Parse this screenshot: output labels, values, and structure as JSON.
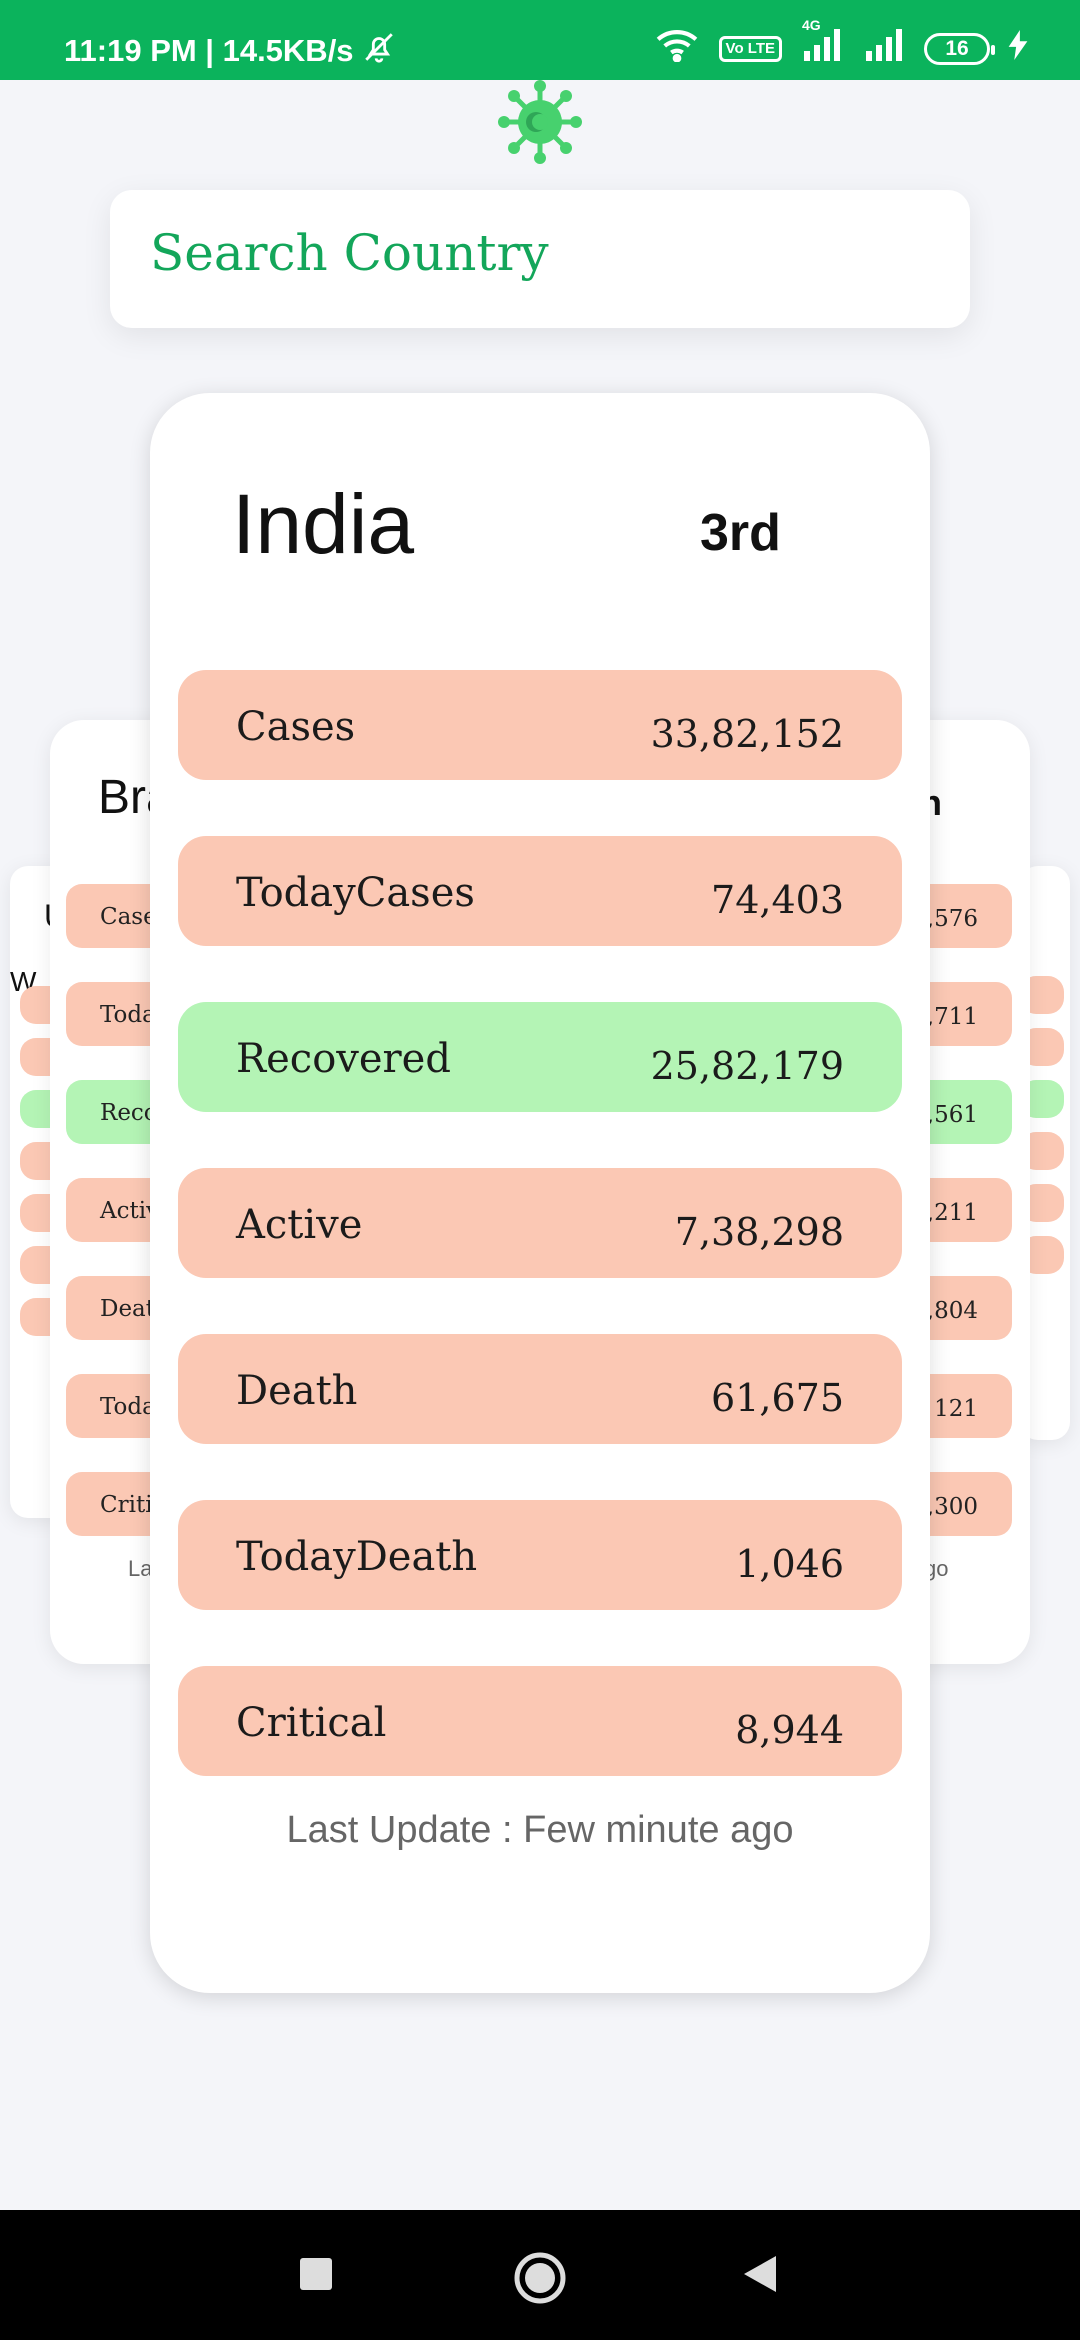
{
  "status_bar": {
    "time_speed": "11:19 PM | 14.5KB/s",
    "network": "4G",
    "volte": "Vo LTE",
    "battery": "16"
  },
  "search": {
    "placeholder": "Search Country"
  },
  "main_card": {
    "country": "India",
    "rank": "3rd",
    "stats": [
      {
        "label": "Cases",
        "value": "33,82,152"
      },
      {
        "label": "TodayCases",
        "value": "74,403"
      },
      {
        "label": "Recovered",
        "value": "25,82,179"
      },
      {
        "label": "Active",
        "value": "7,38,298"
      },
      {
        "label": "Death",
        "value": "61,675"
      },
      {
        "label": "TodayDeath",
        "value": "1,046"
      },
      {
        "label": "Critical",
        "value": "8,944"
      }
    ],
    "last_update": "Last Update : Few minute ago"
  },
  "left_card": {
    "country": "Bra",
    "labels": [
      "Case",
      "Toda",
      "Reco",
      "Activ",
      "Deat",
      "Toda",
      "Criti"
    ],
    "footer": "La"
  },
  "right_card": {
    "country": "n",
    "values": [
      ",576",
      ",711",
      ",561",
      ",211",
      ",804",
      "121",
      ",300"
    ],
    "footer": "go"
  },
  "far_left_card": {
    "country": "U",
    "subtitle": "W"
  },
  "colors": {
    "status_bar": "#0bb35c",
    "pink_row": "#fbc8b4",
    "green_row": "#b4f4b5",
    "search_text": "#13a65a"
  }
}
